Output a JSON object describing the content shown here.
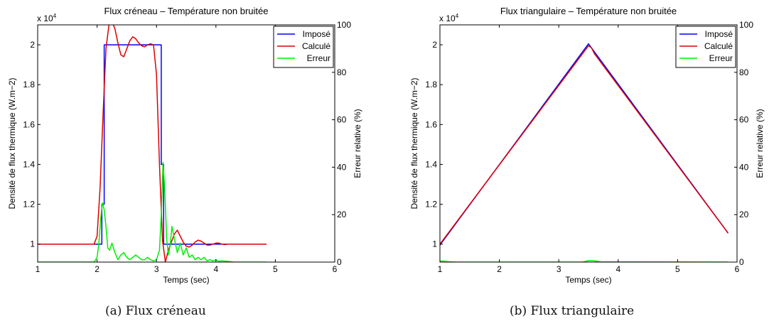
{
  "chart_data": [
    {
      "type": "line",
      "title": "Flux créneau – Température non bruitée",
      "xlabel": "Temps (sec)",
      "ylabel": "Densité de flux thermique (W.m−2)",
      "y2label": "Erreur relative (%)",
      "xlim": [
        1,
        6
      ],
      "ylim": [
        9100,
        21000
      ],
      "y2lim": [
        0,
        100
      ],
      "xticks": [
        "1",
        "2",
        "3",
        "4",
        "5",
        "6"
      ],
      "yticks": [
        {
          "v": 10000,
          "l": "1"
        },
        {
          "v": 12000,
          "l": "1.2"
        },
        {
          "v": 14000,
          "l": "1.4"
        },
        {
          "v": 16000,
          "l": "1.6"
        },
        {
          "v": 18000,
          "l": "1.8"
        },
        {
          "v": 20000,
          "l": "2"
        }
      ],
      "y2ticks": [
        "0",
        "20",
        "40",
        "60",
        "80",
        "100"
      ],
      "exponent": "x 10",
      "exponent_power": "4",
      "legend_position": "top-right",
      "caption": "(a) Flux créneau",
      "series": [
        {
          "name": "Imposé",
          "color": "#0000ff",
          "axis": "left",
          "x": [
            1,
            2.08,
            2.08,
            2.12,
            2.12,
            3.08,
            3.08,
            3.12,
            3.12,
            4.85
          ],
          "y": [
            10000,
            10000,
            12000,
            12000,
            20000,
            20000,
            14000,
            14000,
            10000,
            10000
          ]
        },
        {
          "name": "Calculé",
          "color": "#dd0000",
          "axis": "left",
          "x": [
            1,
            1.95,
            2.0,
            2.05,
            2.1,
            2.15,
            2.2,
            2.25,
            2.3,
            2.35,
            2.4,
            2.45,
            2.5,
            2.55,
            2.6,
            2.65,
            2.7,
            2.75,
            2.8,
            2.85,
            2.9,
            2.95,
            3.0,
            3.05,
            3.1,
            3.15,
            3.2,
            3.25,
            3.3,
            3.35,
            3.4,
            3.45,
            3.5,
            3.55,
            3.6,
            3.65,
            3.7,
            3.75,
            3.8,
            3.85,
            3.9,
            3.95,
            4.0,
            4.05,
            4.1,
            4.15,
            4.2,
            4.3,
            4.5,
            4.85
          ],
          "y": [
            10000,
            10000,
            10400,
            12800,
            16500,
            19800,
            21000,
            21200,
            20800,
            20100,
            19500,
            19400,
            19800,
            20200,
            20400,
            20300,
            20100,
            19950,
            19900,
            20000,
            20050,
            20000,
            18500,
            14000,
            10200,
            9100,
            9700,
            10100,
            10500,
            10700,
            10400,
            10100,
            9900,
            9850,
            9950,
            10100,
            10200,
            10150,
            10050,
            9950,
            9950,
            10000,
            10050,
            10050,
            10000,
            9980,
            10000,
            10000,
            10000,
            10000
          ]
        },
        {
          "name": "Erreur",
          "color": "#00ee00",
          "axis": "right",
          "x": [
            1,
            1.95,
            2.0,
            2.03,
            2.06,
            2.09,
            2.12,
            2.15,
            2.18,
            2.21,
            2.25,
            2.3,
            2.35,
            2.4,
            2.45,
            2.5,
            2.55,
            2.6,
            2.65,
            2.7,
            2.75,
            2.8,
            2.85,
            2.9,
            2.95,
            3.0,
            3.05,
            3.08,
            3.11,
            3.14,
            3.17,
            3.2,
            3.23,
            3.26,
            3.3,
            3.35,
            3.4,
            3.45,
            3.5,
            3.55,
            3.6,
            3.65,
            3.7,
            3.75,
            3.8,
            3.85,
            3.9,
            3.95,
            4.0,
            4.05,
            4.1,
            4.2,
            4.3,
            4.5,
            4.85
          ],
          "y": [
            0,
            0,
            2,
            8,
            18,
            25,
            22,
            15,
            6,
            5,
            8,
            4,
            1,
            3,
            4,
            2,
            1,
            2,
            3,
            2,
            1,
            1,
            2,
            1,
            0.5,
            1,
            5,
            20,
            42,
            30,
            10,
            3,
            7,
            15,
            10,
            4,
            8,
            3,
            6,
            2,
            3,
            1,
            2,
            1,
            2,
            0.5,
            1,
            0.5,
            1,
            0.3,
            0.5,
            0.3,
            0,
            0,
            0
          ]
        }
      ]
    },
    {
      "type": "line",
      "title": "Flux triangulaire – Température non bruitée",
      "xlabel": "Temps (sec)",
      "ylabel": "Densité de flux thermique (W.m−2)",
      "y2label": "Erreur relative (%)",
      "xlim": [
        1,
        6
      ],
      "ylim": [
        9100,
        21000
      ],
      "y2lim": [
        0,
        100
      ],
      "xticks": [
        "1",
        "2",
        "3",
        "4",
        "5",
        "6"
      ],
      "yticks": [
        {
          "v": 10000,
          "l": "1"
        },
        {
          "v": 12000,
          "l": "1.2"
        },
        {
          "v": 14000,
          "l": "1.4"
        },
        {
          "v": 16000,
          "l": "1.6"
        },
        {
          "v": 18000,
          "l": "1.8"
        },
        {
          "v": 20000,
          "l": "2"
        }
      ],
      "y2ticks": [
        "0",
        "20",
        "40",
        "60",
        "80",
        "100"
      ],
      "exponent": "x 10",
      "exponent_power": "4",
      "legend_position": "top-right",
      "caption": "(b) Flux triangulaire",
      "series": [
        {
          "name": "Imposé",
          "color": "#0000ff",
          "axis": "left",
          "x": [
            1,
            3.5,
            5.85
          ],
          "y": [
            9950,
            20050,
            10550
          ]
        },
        {
          "name": "Calculé",
          "color": "#dd0000",
          "axis": "left",
          "x": [
            1,
            3.45,
            3.5,
            3.55,
            3.6,
            5.85
          ],
          "y": [
            10000,
            19750,
            19950,
            19850,
            19550,
            10550
          ]
        },
        {
          "name": "Erreur",
          "color": "#00ee00",
          "axis": "right",
          "x": [
            1,
            1.05,
            1.1,
            1.2,
            1.3,
            3.4,
            3.5,
            3.6,
            3.7,
            5.85
          ],
          "y": [
            0.3,
            0.5,
            0.2,
            0.1,
            0,
            0,
            0.6,
            0.5,
            0.1,
            0
          ]
        }
      ]
    }
  ]
}
